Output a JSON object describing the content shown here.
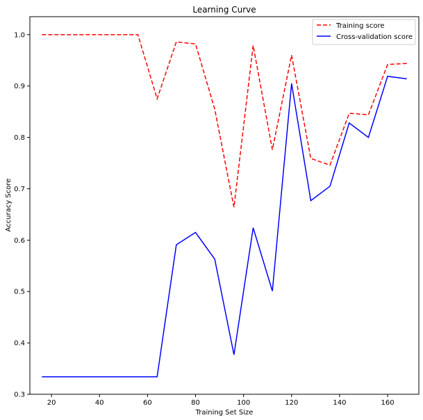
{
  "chart_data": {
    "type": "line",
    "title": "Learning Curve",
    "xlabel": "Training Set Size",
    "ylabel": "Accuracy Score",
    "xlim": [
      11,
      173
    ],
    "ylim": [
      0.3,
      1.035
    ],
    "xticks": [
      20,
      40,
      60,
      80,
      100,
      120,
      140,
      160
    ],
    "yticks": [
      0.3,
      0.4,
      0.5,
      0.6,
      0.7,
      0.8,
      0.9,
      1.0
    ],
    "grid": false,
    "legend_position": "top-right",
    "x": [
      16,
      24,
      32,
      40,
      48,
      56,
      64,
      72,
      80,
      88,
      96,
      104,
      112,
      120,
      128,
      136,
      144,
      152,
      160,
      168
    ],
    "series": [
      {
        "name": "Training score",
        "color": "#ff0000",
        "style": "dashed",
        "values": [
          1.0,
          1.0,
          1.0,
          1.0,
          1.0,
          1.0,
          0.875,
          0.986,
          0.982,
          0.855,
          0.664,
          0.979,
          0.776,
          0.96,
          0.759,
          0.746,
          0.847,
          0.844,
          0.942,
          0.944
        ]
      },
      {
        "name": "Cross-validation score",
        "color": "#0000ff",
        "style": "solid",
        "values": [
          0.334,
          0.334,
          0.334,
          0.334,
          0.334,
          0.334,
          0.334,
          0.591,
          0.615,
          0.563,
          0.377,
          0.624,
          0.501,
          0.905,
          0.677,
          0.705,
          0.828,
          0.8,
          0.919,
          0.914
        ]
      }
    ]
  }
}
